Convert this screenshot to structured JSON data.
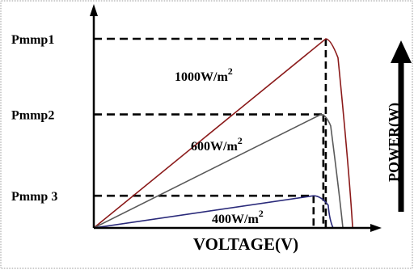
{
  "chart_data": {
    "type": "line",
    "xlabel": "VOLTAGE(V)",
    "ylabel": "POWER(W)",
    "x_unit": "V",
    "y_unit": "W",
    "xlim": [
      0,
      1
    ],
    "ylim": [
      0,
      1.12
    ],
    "grid": false,
    "legend": "none",
    "mpp_labels": [
      "Pmmp1",
      "Pmmp2",
      "Pmmp 3"
    ],
    "series": [
      {
        "name": "1000W/m²",
        "label_main": "1000W/m",
        "label_exp": "2",
        "color": "#8b1a1a",
        "points": [
          [
            0,
            0
          ],
          [
            0.95,
            1.0
          ],
          [
            0.97,
            0.99
          ],
          [
            1.0,
            0.9
          ],
          [
            1.06,
            0
          ]
        ],
        "mpp": {
          "v": 0.95,
          "p": 1.0
        }
      },
      {
        "name": "600W/m²",
        "label_main": "600W/m",
        "label_exp": "2",
        "color": "#5a5a5a",
        "points": [
          [
            0,
            0
          ],
          [
            0.93,
            0.6
          ],
          [
            0.95,
            0.6
          ],
          [
            0.97,
            0.54
          ],
          [
            1.02,
            0
          ]
        ],
        "mpp": {
          "v": 0.94,
          "p": 0.6
        }
      },
      {
        "name": "400W/m²",
        "label_main": "400W/m",
        "label_exp": "2",
        "color": "#2a2a7a",
        "points": [
          [
            0,
            0
          ],
          [
            0.9,
            0.17
          ],
          [
            0.93,
            0.16
          ],
          [
            0.96,
            0.12
          ],
          [
            0.98,
            0
          ]
        ],
        "mpp": {
          "v": 0.9,
          "p": 0.17
        }
      }
    ]
  }
}
